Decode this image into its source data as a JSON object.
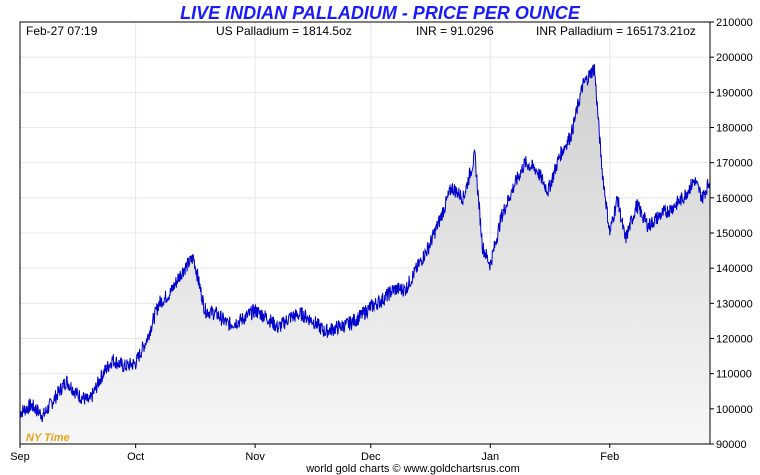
{
  "chart_data": {
    "type": "area",
    "title": "LIVE INDIAN PALLADIUM - PRICE PER OUNCE",
    "header": {
      "datetime": "Feb-27  07:19",
      "us_price": "US Palladium = 1814.5oz",
      "fx_rate": "INR = 91.0296",
      "inr_price": "INR Palladium = 165173.21oz"
    },
    "timezone_note": "NY Time",
    "credit": "world gold charts © www.goldchartsrus.com",
    "ylim": [
      90000,
      210000
    ],
    "yticks": [
      90000,
      100000,
      110000,
      120000,
      130000,
      140000,
      150000,
      160000,
      170000,
      180000,
      190000,
      200000,
      210000
    ],
    "xlim": [
      "2025-09-01",
      "2026-02-27"
    ],
    "xticks": [
      {
        "date": "2025-09-01",
        "label": "Sep"
      },
      {
        "date": "2025-10-01",
        "label": "Oct"
      },
      {
        "date": "2025-11-01",
        "label": "Nov"
      },
      {
        "date": "2025-12-01",
        "label": "Dec"
      },
      {
        "date": "2026-01-01",
        "label": "Jan"
      },
      {
        "date": "2026-02-01",
        "label": "Feb"
      }
    ],
    "grid": true,
    "line_color": "#0000cc",
    "series": [
      {
        "x": [
          "2025-09-01",
          "2025-09-04",
          "2025-09-07",
          "2025-09-10",
          "2025-09-13",
          "2025-09-16",
          "2025-09-19",
          "2025-09-22",
          "2025-09-25",
          "2025-09-28",
          "2025-10-01",
          "2025-10-04",
          "2025-10-07",
          "2025-10-10",
          "2025-10-13",
          "2025-10-16",
          "2025-10-19",
          "2025-10-22",
          "2025-10-25",
          "2025-10-28",
          "2025-11-01",
          "2025-11-04",
          "2025-11-07",
          "2025-11-10",
          "2025-11-13",
          "2025-11-16",
          "2025-11-19",
          "2025-11-22",
          "2025-11-25",
          "2025-11-28",
          "2025-12-01",
          "2025-12-04",
          "2025-12-07",
          "2025-12-10",
          "2025-12-13",
          "2025-12-16",
          "2025-12-19",
          "2025-12-22",
          "2025-12-25",
          "2025-12-28",
          "2025-12-30",
          "2026-01-01",
          "2026-01-04",
          "2026-01-07",
          "2026-01-10",
          "2026-01-13",
          "2026-01-16",
          "2026-01-19",
          "2026-01-22",
          "2026-01-25",
          "2026-01-28",
          "2026-01-30",
          "2026-02-01",
          "2026-02-03",
          "2026-02-05",
          "2026-02-08",
          "2026-02-11",
          "2026-02-14",
          "2026-02-17",
          "2026-02-20",
          "2026-02-23",
          "2026-02-25",
          "2026-02-27"
        ],
        "values": [
          99000,
          101000,
          98000,
          103000,
          108000,
          104000,
          102000,
          109000,
          114000,
          112000,
          113000,
          120000,
          130000,
          133000,
          139000,
          143000,
          128000,
          127000,
          124000,
          125000,
          128000,
          126000,
          123000,
          126000,
          127000,
          125000,
          122000,
          123000,
          124000,
          126000,
          129000,
          131000,
          134000,
          134000,
          140000,
          146000,
          154000,
          163000,
          160000,
          172000,
          146000,
          141000,
          155000,
          163000,
          170000,
          168000,
          162000,
          172000,
          178000,
          192000,
          197000,
          168000,
          150000,
          160000,
          148000,
          158000,
          152000,
          155000,
          157000,
          160000,
          165000,
          160000,
          165000
        ]
      }
    ]
  }
}
